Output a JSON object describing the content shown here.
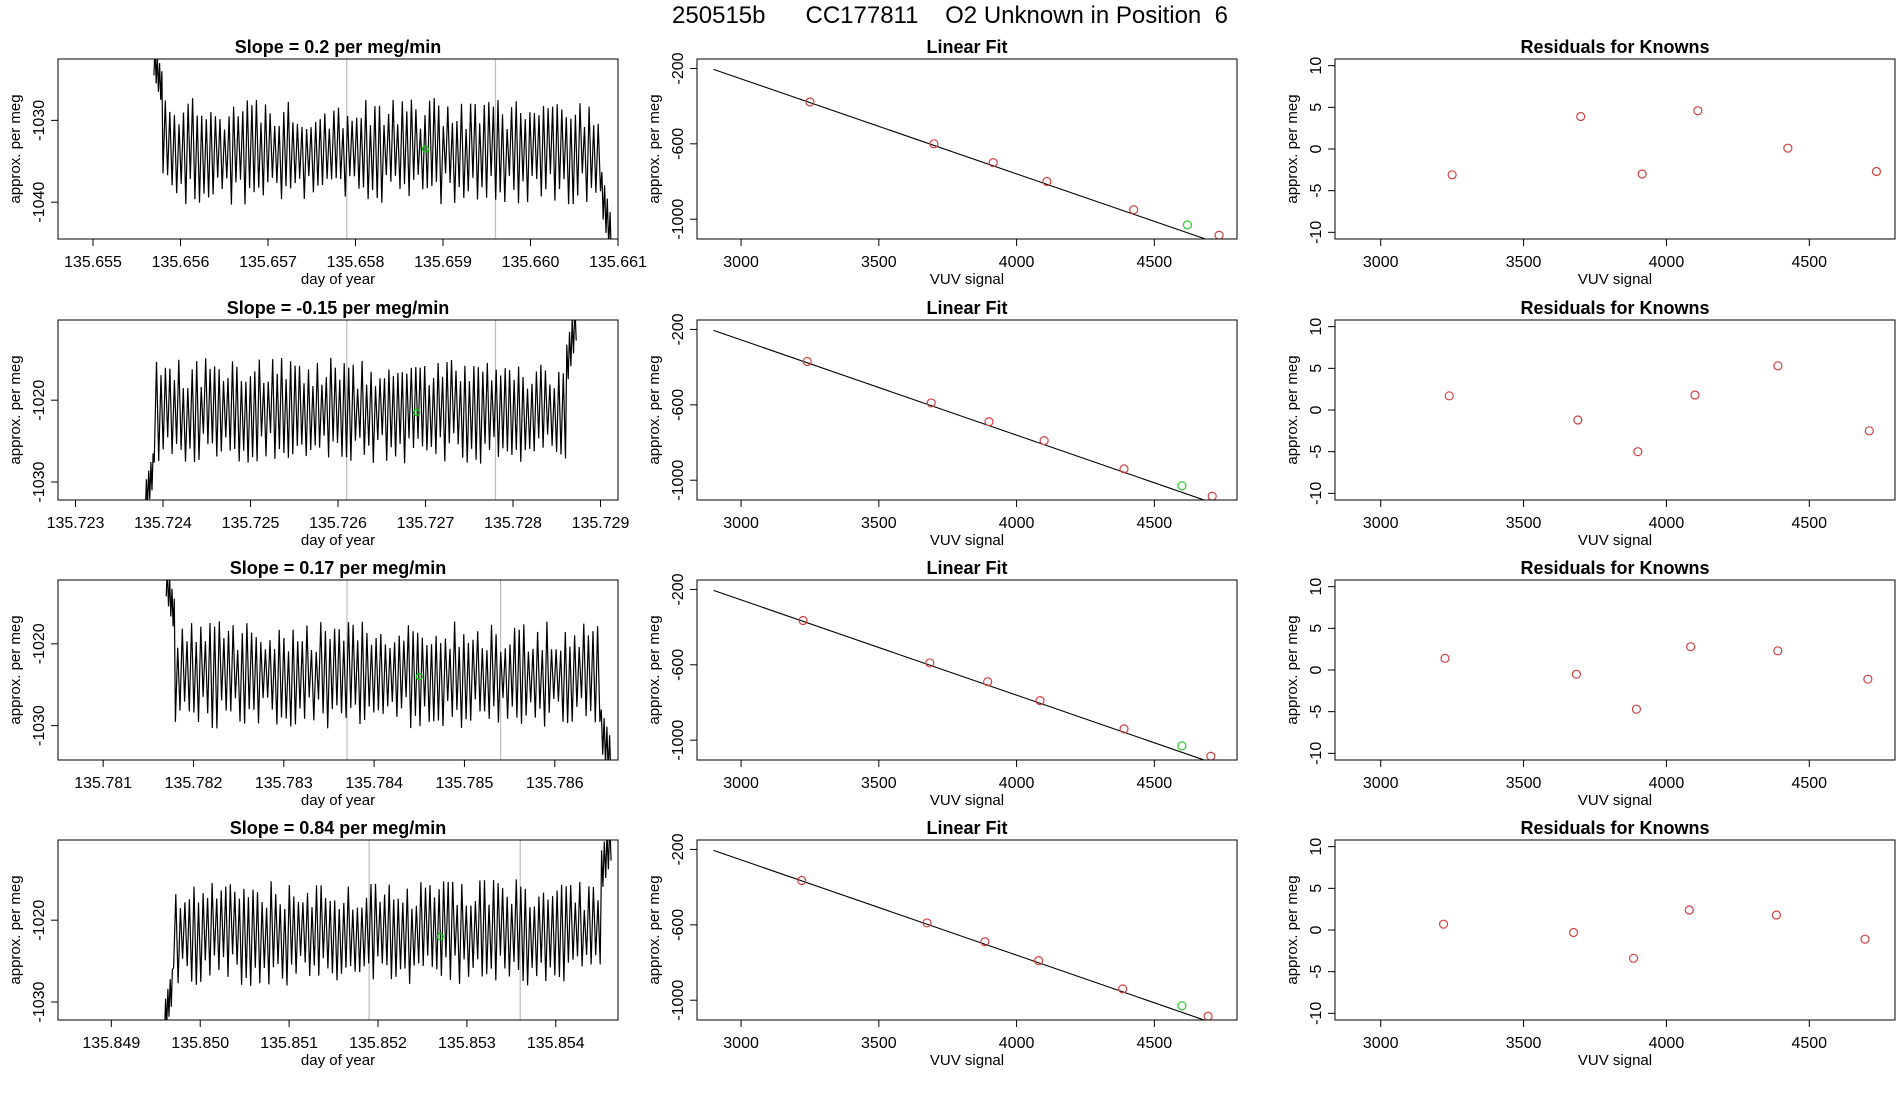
{
  "header": {
    "title": "250515b      CC177811    O2 Unknown in Position  6"
  },
  "colors": {
    "trace": "#000000",
    "marker": "#00cc00",
    "vline": "#bdbdbd",
    "fit_point": "#d04040",
    "unknown_point": "#33cc33",
    "residual": "#d04040"
  },
  "chart_data": [
    {
      "row": 1,
      "type": "line",
      "title": "Slope =  0.2  per meg/min",
      "xlabel": "day of year",
      "ylabel": "approx. per meg",
      "xlim": [
        135.6546,
        135.661
      ],
      "ylim": [
        -1044.5,
        -1022.5
      ],
      "xticks": [
        135.655,
        135.656,
        135.657,
        135.658,
        135.659,
        135.66,
        135.661
      ],
      "yticks": [
        -1040,
        -1030
      ],
      "vlines": [
        135.6579,
        135.6596
      ],
      "marker": {
        "x": 135.6588,
        "y": -1033.5
      },
      "trace": {
        "x_start": 135.6558,
        "x_end": 135.6608,
        "center": -1033.8,
        "amplitude": 7.0,
        "cycles": 96,
        "lead": [
          -1022.5,
          -1026.0
        ],
        "tail": [
          -1038.0,
          -1044.5
        ]
      }
    },
    {
      "row": 1,
      "type": "scatter",
      "title": "Linear Fit",
      "xlabel": "VUV signal",
      "ylabel": "approx. per meg",
      "xlim": [
        2840,
        4800
      ],
      "ylim": [
        -1105,
        -150
      ],
      "xticks": [
        3000,
        3500,
        4000,
        4500
      ],
      "yticks": [
        -200,
        -600,
        -1000
      ],
      "fit_line": {
        "x": [
          2900,
          4735
        ],
        "y": [
          -205,
          -1130
        ]
      },
      "knowns": [
        [
          3250,
          -378
        ],
        [
          3700,
          -600
        ],
        [
          3915,
          -700
        ],
        [
          4110,
          -800
        ],
        [
          4425,
          -950
        ],
        [
          4735,
          -1085
        ]
      ],
      "unknown": [
        4620,
        -1030
      ]
    },
    {
      "row": 1,
      "type": "scatter",
      "title": "Residuals for Knowns",
      "xlabel": "VUV signal",
      "ylabel": "approx. per meg",
      "xlim": [
        2840,
        4800
      ],
      "ylim": [
        -10.8,
        10.8
      ],
      "xticks": [
        3000,
        3500,
        4000,
        4500
      ],
      "yticks": [
        -10,
        -5,
        0,
        5,
        10
      ],
      "points": [
        [
          3250,
          -3.1
        ],
        [
          3700,
          3.9
        ],
        [
          3915,
          -3.0
        ],
        [
          4110,
          4.6
        ],
        [
          4425,
          0.1
        ],
        [
          4735,
          -2.7
        ]
      ]
    },
    {
      "row": 2,
      "type": "line",
      "title": "Slope =  -0.15  per meg/min",
      "xlabel": "day of year",
      "ylabel": "approx. per meg",
      "xlim": [
        135.7228,
        135.7292
      ],
      "ylim": [
        -1032.2,
        -1010.2
      ],
      "xticks": [
        135.723,
        135.724,
        135.725,
        135.726,
        135.727,
        135.728,
        135.729
      ],
      "yticks": [
        -1030,
        -1020
      ],
      "vlines": [
        135.7261,
        135.7278
      ],
      "marker": {
        "x": 135.7269,
        "y": -1021.5
      },
      "trace": {
        "x_start": 135.7239,
        "x_end": 135.7286,
        "center": -1021.3,
        "amplitude": 7.0,
        "cycles": 92,
        "lead": [
          -1032.2,
          -1028.5
        ],
        "tail": [
          -1016.5,
          -1010.2
        ]
      }
    },
    {
      "row": 2,
      "type": "scatter",
      "title": "Linear Fit",
      "xlabel": "VUV signal",
      "ylabel": "approx. per meg",
      "xlim": [
        2840,
        4800
      ],
      "ylim": [
        -1105,
        -150
      ],
      "xticks": [
        3000,
        3500,
        4000,
        4500
      ],
      "yticks": [
        -200,
        -600,
        -1000
      ],
      "fit_line": {
        "x": [
          2900,
          4730
        ],
        "y": [
          -205,
          -1130
        ]
      },
      "knowns": [
        [
          3240,
          -370
        ],
        [
          3690,
          -590
        ],
        [
          3900,
          -690
        ],
        [
          4100,
          -790
        ],
        [
          4390,
          -940
        ],
        [
          4710,
          -1085
        ]
      ],
      "unknown": [
        4600,
        -1030
      ]
    },
    {
      "row": 2,
      "type": "scatter",
      "title": "Residuals for Knowns",
      "xlabel": "VUV signal",
      "ylabel": "approx. per meg",
      "xlim": [
        2840,
        4800
      ],
      "ylim": [
        -10.8,
        10.8
      ],
      "xticks": [
        3000,
        3500,
        4000,
        4500
      ],
      "yticks": [
        -10,
        -5,
        0,
        5,
        10
      ],
      "points": [
        [
          3240,
          1.7
        ],
        [
          3690,
          -1.2
        ],
        [
          3900,
          -5.0
        ],
        [
          4100,
          1.8
        ],
        [
          4390,
          5.3
        ],
        [
          4710,
          -2.5
        ]
      ]
    },
    {
      "row": 3,
      "type": "line",
      "title": "Slope =  0.17  per meg/min",
      "xlabel": "day of year",
      "ylabel": "approx. per meg",
      "xlim": [
        135.7805,
        135.7867
      ],
      "ylim": [
        -1034.2,
        -1012.2
      ],
      "xticks": [
        135.781,
        135.782,
        135.783,
        135.784,
        135.785,
        135.786
      ],
      "yticks": [
        -1030,
        -1020
      ],
      "vlines": [
        135.7837,
        135.7854
      ],
      "marker": {
        "x": 135.7845,
        "y": -1024.0
      },
      "trace": {
        "x_start": 135.7818,
        "x_end": 135.7865,
        "center": -1023.8,
        "amplitude": 7.0,
        "cycles": 92,
        "lead": [
          -1012.2,
          -1016.5
        ],
        "tail": [
          -1030.0,
          -1034.2
        ]
      }
    },
    {
      "row": 3,
      "type": "scatter",
      "title": "Linear Fit",
      "xlabel": "VUV signal",
      "ylabel": "approx. per meg",
      "xlim": [
        2840,
        4800
      ],
      "ylim": [
        -1105,
        -150
      ],
      "xticks": [
        3000,
        3500,
        4000,
        4500
      ],
      "yticks": [
        -200,
        -600,
        -1000
      ],
      "fit_line": {
        "x": [
          2900,
          4730
        ],
        "y": [
          -205,
          -1130
        ]
      },
      "knowns": [
        [
          3225,
          -365
        ],
        [
          3685,
          -590
        ],
        [
          3895,
          -690
        ],
        [
          4085,
          -790
        ],
        [
          4390,
          -940
        ],
        [
          4705,
          -1085
        ]
      ],
      "unknown": [
        4600,
        -1030
      ]
    },
    {
      "row": 3,
      "type": "scatter",
      "title": "Residuals for Knowns",
      "xlabel": "VUV signal",
      "ylabel": "approx. per meg",
      "xlim": [
        2840,
        4800
      ],
      "ylim": [
        -10.8,
        10.8
      ],
      "xticks": [
        3000,
        3500,
        4000,
        4500
      ],
      "yticks": [
        -10,
        -5,
        0,
        5,
        10
      ],
      "points": [
        [
          3225,
          1.4
        ],
        [
          3685,
          -0.5
        ],
        [
          3895,
          -4.7
        ],
        [
          4085,
          2.8
        ],
        [
          4390,
          2.3
        ],
        [
          4705,
          -1.1
        ]
      ]
    },
    {
      "row": 4,
      "type": "line",
      "title": "Slope =  0.84  per meg/min",
      "xlabel": "day of year",
      "ylabel": "approx. per meg",
      "xlim": [
        135.8484,
        135.8547
      ],
      "ylim": [
        -1032.2,
        -1010.2
      ],
      "xticks": [
        135.849,
        135.85,
        135.851,
        135.852,
        135.853,
        135.854
      ],
      "yticks": [
        -1030,
        -1020
      ],
      "vlines": [
        135.8519,
        135.8536
      ],
      "marker": {
        "x": 135.8527,
        "y": -1022.0
      },
      "trace": {
        "x_start": 135.8497,
        "x_end": 135.8545,
        "center": -1021.5,
        "amplitude": 7.0,
        "cycles": 94,
        "lead": [
          -1032.2,
          -1028.0
        ],
        "tail": [
          -1014.5,
          -1010.2
        ]
      }
    },
    {
      "row": 4,
      "type": "scatter",
      "title": "Linear Fit",
      "xlabel": "VUV signal",
      "ylabel": "approx. per meg",
      "xlim": [
        2840,
        4800
      ],
      "ylim": [
        -1105,
        -150
      ],
      "xticks": [
        3000,
        3500,
        4000,
        4500
      ],
      "yticks": [
        -200,
        -600,
        -1000
      ],
      "fit_line": {
        "x": [
          2900,
          4730
        ],
        "y": [
          -205,
          -1130
        ]
      },
      "knowns": [
        [
          3220,
          -365
        ],
        [
          3675,
          -590
        ],
        [
          3885,
          -690
        ],
        [
          4080,
          -790
        ],
        [
          4385,
          -940
        ],
        [
          4695,
          -1085
        ]
      ],
      "unknown": [
        4600,
        -1030
      ]
    },
    {
      "row": 4,
      "type": "scatter",
      "title": "Residuals for Knowns",
      "xlabel": "VUV signal",
      "ylabel": "approx. per meg",
      "xlim": [
        2840,
        4800
      ],
      "ylim": [
        -10.8,
        10.8
      ],
      "xticks": [
        3000,
        3500,
        4000,
        4500
      ],
      "yticks": [
        -10,
        -5,
        0,
        5,
        10
      ],
      "points": [
        [
          3220,
          0.7
        ],
        [
          3675,
          -0.3
        ],
        [
          3885,
          -3.4
        ],
        [
          4080,
          2.4
        ],
        [
          4385,
          1.8
        ],
        [
          4695,
          -1.1
        ]
      ]
    }
  ]
}
